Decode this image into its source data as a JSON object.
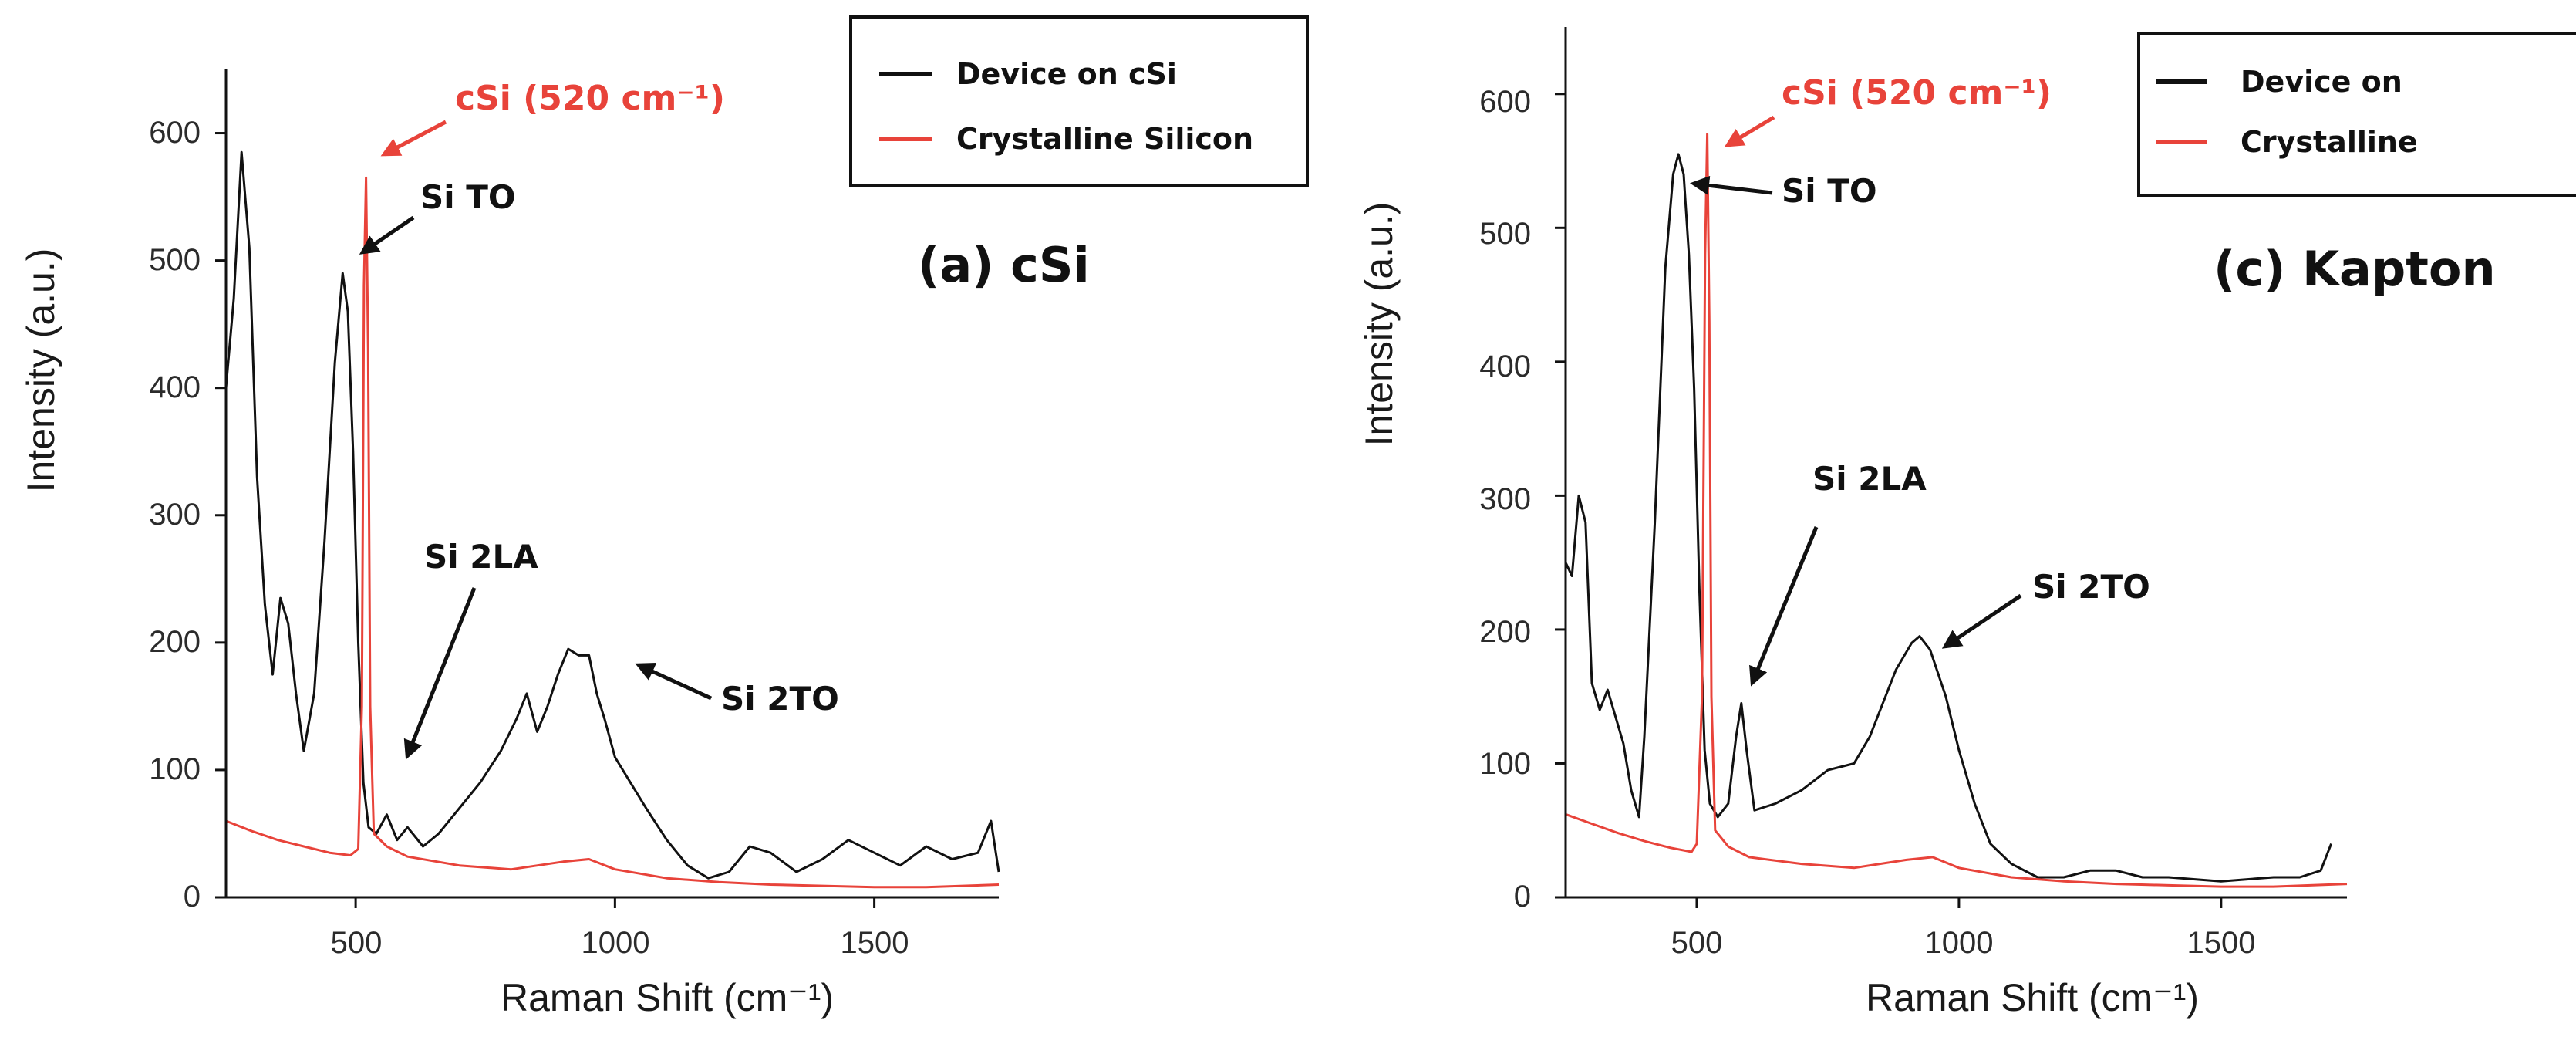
{
  "chart_data": [
    {
      "type": "line",
      "panel_title": "(a) cSi",
      "xlabel": "Raman Shift (cm⁻¹)",
      "ylabel": "Intensity  (a.u.)",
      "xlim": [
        250,
        1740
      ],
      "ylim": [
        0,
        650
      ],
      "xticks": [
        "500",
        "1000",
        "1500"
      ],
      "yticks": [
        "0",
        "100",
        "200",
        "300",
        "400",
        "500",
        "600"
      ],
      "legend": {
        "placement": "top-right",
        "entries": [
          "Device on cSi",
          "Crystalline Silicon"
        ]
      },
      "series": [
        {
          "name": "Device on cSi",
          "color": "#111111",
          "x": [
            250,
            265,
            280,
            295,
            310,
            325,
            340,
            355,
            370,
            385,
            400,
            420,
            440,
            460,
            475,
            485,
            495,
            505,
            515,
            525,
            540,
            560,
            580,
            600,
            630,
            660,
            700,
            740,
            780,
            810,
            830,
            850,
            870,
            890,
            910,
            930,
            950,
            965,
            980,
            1000,
            1030,
            1060,
            1100,
            1140,
            1180,
            1220,
            1260,
            1300,
            1350,
            1400,
            1450,
            1500,
            1550,
            1600,
            1650,
            1700,
            1725,
            1740
          ],
          "y": [
            400,
            470,
            585,
            510,
            330,
            230,
            175,
            235,
            215,
            160,
            115,
            160,
            280,
            420,
            490,
            460,
            350,
            200,
            90,
            55,
            50,
            65,
            45,
            55,
            40,
            50,
            70,
            90,
            115,
            140,
            160,
            130,
            150,
            175,
            195,
            190,
            190,
            160,
            140,
            110,
            90,
            70,
            45,
            25,
            15,
            20,
            40,
            35,
            20,
            30,
            45,
            35,
            25,
            40,
            30,
            35,
            60,
            20
          ]
        },
        {
          "name": "Crystalline Silicon",
          "color": "#e8433a",
          "x": [
            250,
            300,
            350,
            400,
            450,
            490,
            505,
            512,
            516,
            520,
            524,
            528,
            535,
            560,
            600,
            700,
            800,
            900,
            950,
            1000,
            1100,
            1200,
            1300,
            1400,
            1500,
            1600,
            1740
          ],
          "y": [
            60,
            52,
            45,
            40,
            35,
            33,
            38,
            150,
            480,
            565,
            430,
            150,
            50,
            40,
            32,
            25,
            22,
            28,
            30,
            22,
            15,
            12,
            10,
            9,
            8,
            8,
            10
          ]
        }
      ],
      "annotations": [
        {
          "text": "cSi (520 cm⁻¹)",
          "color": "#e8433a",
          "target_x": 520,
          "target_y": 585
        },
        {
          "text": "Si TO",
          "color": "#111111",
          "target_x": 478,
          "target_y": 500
        },
        {
          "text": "Si 2LA",
          "color": "#111111",
          "target_x": 570,
          "target_y": 110
        },
        {
          "text": "Si 2TO",
          "color": "#111111",
          "target_x": 1010,
          "target_y": 185
        }
      ]
    },
    {
      "type": "line",
      "panel_title": "(c) Kapton",
      "xlabel": "Raman Shift (cm⁻¹)",
      "ylabel": "Intensity  (a.u.)",
      "xlim": [
        250,
        1740
      ],
      "ylim": [
        0,
        650
      ],
      "xticks": [
        "500",
        "1000",
        "1500"
      ],
      "yticks": [
        "0",
        "100",
        "200",
        "300",
        "400",
        "500",
        "600"
      ],
      "legend": {
        "placement": "top-right",
        "entries": [
          "Device on",
          "Crystalline"
        ]
      },
      "series": [
        {
          "name": "Device on",
          "color": "#111111",
          "x": [
            250,
            262,
            275,
            288,
            300,
            315,
            330,
            345,
            360,
            375,
            390,
            400,
            420,
            440,
            455,
            465,
            475,
            485,
            495,
            505,
            515,
            525,
            540,
            560,
            575,
            585,
            595,
            610,
            650,
            700,
            750,
            800,
            830,
            850,
            880,
            910,
            925,
            945,
            975,
            1000,
            1030,
            1060,
            1100,
            1150,
            1200,
            1250,
            1300,
            1350,
            1400,
            1500,
            1600,
            1650,
            1690,
            1710
          ],
          "y": [
            250,
            240,
            300,
            280,
            160,
            140,
            155,
            135,
            115,
            80,
            60,
            120,
            280,
            470,
            540,
            555,
            540,
            480,
            380,
            230,
            110,
            70,
            60,
            70,
            120,
            145,
            110,
            65,
            70,
            80,
            95,
            100,
            120,
            140,
            170,
            190,
            195,
            185,
            150,
            110,
            70,
            40,
            25,
            15,
            15,
            20,
            20,
            15,
            15,
            12,
            15,
            15,
            20,
            40
          ]
        },
        {
          "name": "Crystalline",
          "color": "#e8433a",
          "x": [
            250,
            300,
            350,
            400,
            450,
            490,
            500,
            510,
            516,
            520,
            524,
            528,
            535,
            560,
            600,
            700,
            800,
            900,
            950,
            1000,
            1100,
            1200,
            1300,
            1400,
            1500,
            1600,
            1740
          ],
          "y": [
            62,
            55,
            48,
            42,
            37,
            34,
            40,
            150,
            480,
            570,
            430,
            150,
            50,
            38,
            30,
            25,
            22,
            28,
            30,
            22,
            15,
            12,
            10,
            9,
            8,
            8,
            10
          ]
        }
      ],
      "annotations": [
        {
          "text": "cSi (520 cm⁻¹)",
          "color": "#e8433a",
          "target_x": 522,
          "target_y": 570
        },
        {
          "text": "Si TO",
          "color": "#111111",
          "target_x": 500,
          "target_y": 540
        },
        {
          "text": "Si 2LA",
          "color": "#111111",
          "target_x": 585,
          "target_y": 155
        },
        {
          "text": "Si 2TO",
          "color": "#111111",
          "target_x": 950,
          "target_y": 185
        }
      ]
    }
  ]
}
